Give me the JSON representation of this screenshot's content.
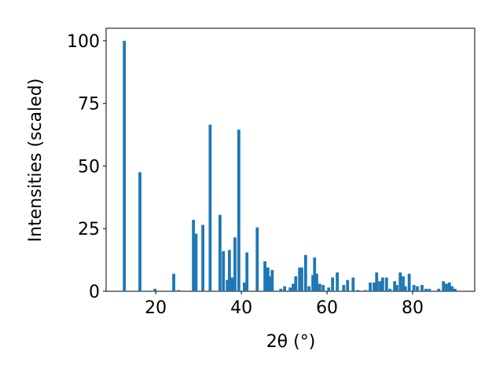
{
  "chart_data": {
    "type": "bar",
    "x_label": "2θ (°)",
    "y_label": "Intensities (scaled)",
    "x": [
      12.66,
      16.3,
      19.8,
      24.2,
      25.3,
      28.8,
      29.4,
      31.0,
      32.7,
      35.0,
      35.8,
      36.7,
      37.2,
      37.8,
      38.5,
      39.4,
      40.7,
      41.3,
      43.7,
      45.5,
      46.2,
      46.6,
      47.2,
      49.2,
      50.1,
      51.4,
      52.1,
      52.7,
      53.6,
      54.1,
      55.0,
      55.8,
      56.7,
      57.1,
      57.6,
      58.3,
      59.1,
      60.4,
      61.3,
      62.4,
      63.9,
      64.8,
      66.1,
      67.2,
      69.0,
      70.1,
      71.0,
      71.6,
      72.3,
      73.0,
      73.9,
      74.7,
      75.8,
      76.3,
      77.1,
      77.8,
      78.3,
      79.2,
      80.3,
      81.1,
      82.2,
      83.1,
      83.9,
      86.1,
      87.2,
      87.9,
      88.6,
      89.2,
      89.9
    ],
    "values": [
      100,
      47.5,
      1,
      7,
      0.5,
      28.5,
      23,
      26.5,
      66.5,
      30.5,
      16,
      4.5,
      16.5,
      5.5,
      21.5,
      64.5,
      3.5,
      15.5,
      25.5,
      12,
      9.5,
      6,
      8.5,
      1,
      2,
      1.5,
      3,
      6,
      9.5,
      9.5,
      14.5,
      2,
      6.5,
      13.5,
      7,
      3,
      2.5,
      1.5,
      5.5,
      7.5,
      2.5,
      4.5,
      5.5,
      0.5,
      0.5,
      3.5,
      3.5,
      7.5,
      4,
      5.5,
      5.5,
      1,
      4,
      2.5,
      7.5,
      6,
      2,
      7,
      2.5,
      2,
      2.5,
      1,
      1,
      1,
      4,
      3,
      3.5,
      2,
      1
    ],
    "color": "#1f77b4",
    "xlim": [
      8.4,
      94.5
    ],
    "ylim": [
      0,
      105
    ],
    "xticks": [
      20,
      40,
      60,
      80
    ],
    "yticks": [
      0,
      25,
      50,
      75,
      100
    ],
    "grid": false
  }
}
